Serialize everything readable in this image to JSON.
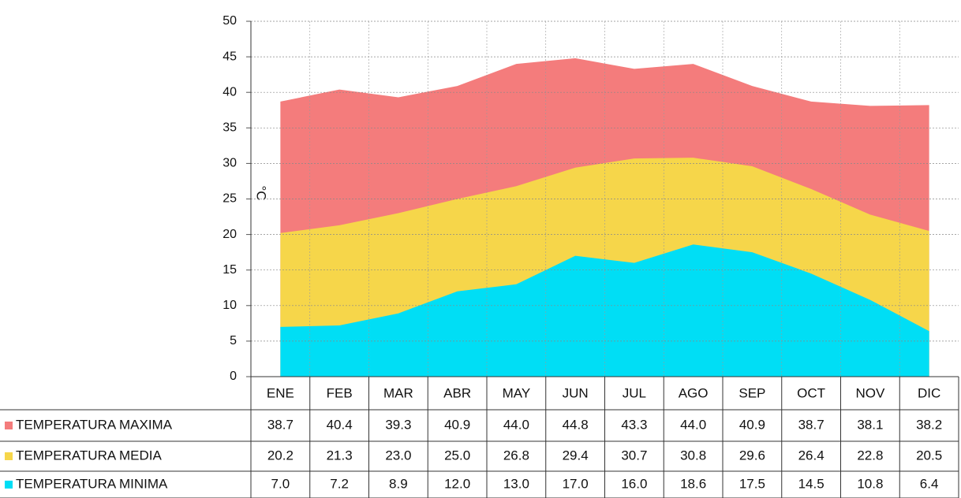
{
  "chart_data": {
    "type": "area",
    "y_label": "°C",
    "categories": [
      "ENE",
      "FEB",
      "MAR",
      "ABR",
      "MAY",
      "JUN",
      "JUL",
      "AGO",
      "SEP",
      "OCT",
      "NOV",
      "DIC"
    ],
    "series": [
      {
        "name": "TEMPERATURA MAXIMA",
        "color": "#f47c7c",
        "values": [
          38.7,
          40.4,
          39.3,
          40.9,
          44.0,
          44.8,
          43.3,
          44.0,
          40.9,
          38.7,
          38.1,
          38.2
        ],
        "value_labels": [
          "38.7",
          "40.4",
          "39.3",
          "40.9",
          "44.0",
          "44.8",
          "43.3",
          "44.0",
          "40.9",
          "38.7",
          "38.1",
          "38.2"
        ]
      },
      {
        "name": "TEMPERATURA MEDIA",
        "color": "#f6d64a",
        "values": [
          20.2,
          21.3,
          23.0,
          25.0,
          26.8,
          29.4,
          30.7,
          30.8,
          29.6,
          26.4,
          22.8,
          20.5
        ],
        "value_labels": [
          "20.2",
          "21.3",
          "23.0",
          "25.0",
          "26.8",
          "29.4",
          "30.7",
          "30.8",
          "29.6",
          "26.4",
          "22.8",
          "20.5"
        ]
      },
      {
        "name": "TEMPERATURA MINIMA",
        "color": "#00def5",
        "values": [
          7.0,
          7.2,
          8.9,
          12.0,
          13.0,
          17.0,
          16.0,
          18.6,
          17.5,
          14.5,
          10.8,
          6.4
        ],
        "value_labels": [
          "7.0",
          "7.2",
          "8.9",
          "12.0",
          "13.0",
          "17.0",
          "16.0",
          "18.6",
          "17.5",
          "14.5",
          "10.8",
          "6.4"
        ]
      }
    ],
    "ylim": [
      0,
      50
    ],
    "yticks": [
      0,
      5,
      10,
      15,
      20,
      25,
      30,
      35,
      40,
      45,
      50
    ],
    "grid": true
  }
}
